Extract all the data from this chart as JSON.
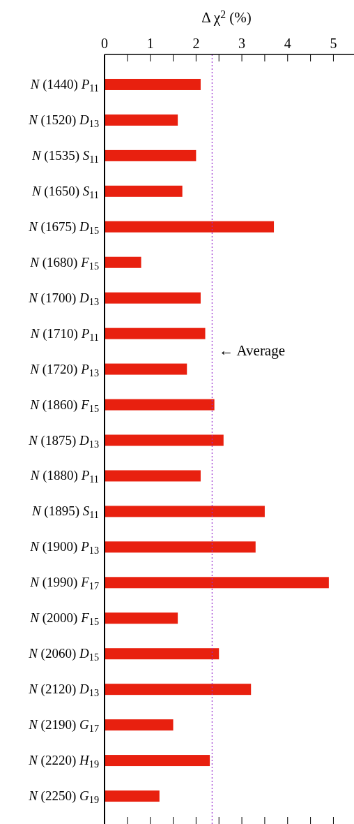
{
  "chart_data": {
    "type": "bar",
    "orientation": "horizontal",
    "xlabel": "Δ χ$^{2}$ (%)",
    "categories": [
      "N (1440) P$_{11}$",
      "N (1520) D$_{13}$",
      "N (1535) S$_{11}$",
      "N (1650) S$_{11}$",
      "N (1675) D$_{15}$",
      "N (1680) F$_{15}$",
      "N (1700) D$_{13}$",
      "N (1710) P$_{11}$",
      "N (1720) P$_{13}$",
      "N (1860) F$_{15}$",
      "N (1875) D$_{13}$",
      "N (1880) P$_{11}$",
      "N (1895) S$_{11}$",
      "N (1900) P$_{13}$",
      "N (1990) F$_{17}$",
      "N (2000) F$_{15}$",
      "N (2060) D$_{15}$",
      "N (2120) D$_{13}$",
      "N (2190) G$_{17}$",
      "N (2220) H$_{19}$",
      "N (2250) G$_{19}$"
    ],
    "values": [
      2.1,
      1.6,
      2.0,
      1.7,
      3.7,
      0.8,
      2.1,
      2.2,
      1.8,
      2.4,
      2.6,
      2.1,
      3.5,
      3.3,
      4.9,
      1.6,
      2.5,
      3.2,
      1.5,
      2.3,
      1.2
    ],
    "color": "#e8200f",
    "xlim": [
      0,
      5.45
    ],
    "xticks": [
      0,
      {
        "value": 0.5,
        "label": null
      },
      1,
      {
        "value": 1.5,
        "label": null
      },
      2,
      {
        "value": 2.5,
        "label": null
      },
      3,
      {
        "value": 3.5,
        "label": null
      },
      4,
      {
        "value": 4.5,
        "label": null
      },
      5
    ],
    "ref_lines": [
      {
        "axis": "x",
        "value": 2.35,
        "label": "← Average",
        "color": "#9b30d0",
        "line_style": "dotted"
      }
    ]
  }
}
